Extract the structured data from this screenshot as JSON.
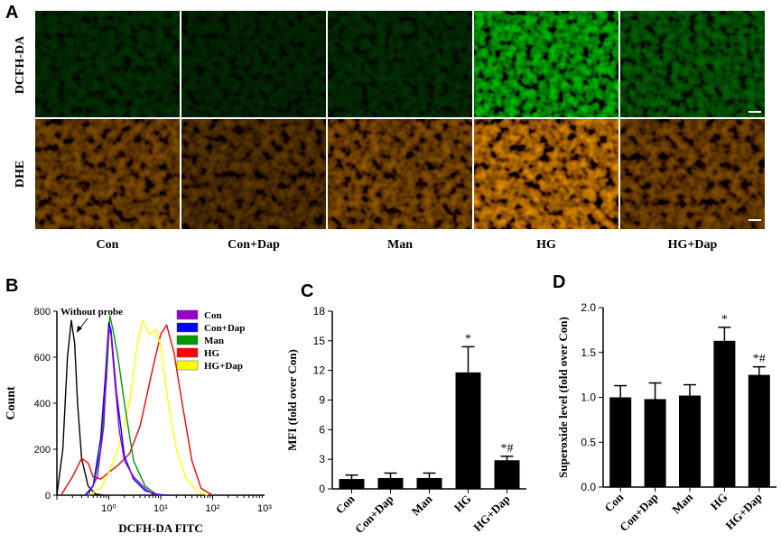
{
  "panel_A": {
    "label": "A",
    "row_labels": [
      "DCFH-DA",
      "DHE"
    ],
    "column_labels": [
      "Con",
      "Con+Dap",
      "Man",
      "HG",
      "HG+Dap"
    ]
  },
  "panel_B": {
    "label": "B"
  },
  "panel_C": {
    "label": "C"
  },
  "panel_D": {
    "label": "D"
  },
  "colors": {
    "Con": "#9900cc",
    "Con+Dap": "#0000ff",
    "Man": "#009900",
    "HG": "#ff0000",
    "HG+Dap": "#ffff00",
    "Without probe": "#000000"
  },
  "chart_data": [
    {
      "panel": "B",
      "type": "line",
      "xlabel": "DCFH-DA FITC",
      "ylabel": "Count",
      "xscale": "log",
      "xlim": [
        0.1,
        1000
      ],
      "ylim": [
        0,
        800
      ],
      "xticks": [
        "10⁰",
        "10¹",
        "10²",
        "10³"
      ],
      "yticks": [
        0,
        200,
        400,
        600,
        800
      ],
      "annotation": "Without probe",
      "legend_position": "top-right",
      "legend": [
        "Con",
        "Con+Dap",
        "Man",
        "HG",
        "HG+Dap"
      ],
      "series": [
        {
          "name": "Without probe",
          "x": [
            0.1,
            0.13,
            0.16,
            0.19,
            0.22,
            0.25,
            0.3,
            0.4,
            0.55,
            0.8
          ],
          "y": [
            0,
            200,
            600,
            760,
            660,
            400,
            160,
            40,
            5,
            0
          ]
        },
        {
          "name": "Con",
          "x": [
            0.4,
            0.6,
            0.8,
            0.9,
            1.0,
            1.1,
            1.3,
            1.6,
            2.0,
            3.0,
            5.0,
            7.0,
            10.0
          ],
          "y": [
            0,
            80,
            300,
            550,
            730,
            700,
            500,
            280,
            150,
            80,
            30,
            5,
            0
          ]
        },
        {
          "name": "Con+Dap",
          "x": [
            0.35,
            0.5,
            0.7,
            0.85,
            1.0,
            1.1,
            1.4,
            2.0,
            3.0,
            5.0,
            8.0,
            12.0
          ],
          "y": [
            0,
            40,
            250,
            500,
            750,
            720,
            450,
            170,
            70,
            20,
            5,
            0
          ]
        },
        {
          "name": "Man",
          "x": [
            0.35,
            0.5,
            0.7,
            0.9,
            1.05,
            1.2,
            1.5,
            2.0,
            3.0,
            5.0,
            8.0,
            12.0
          ],
          "y": [
            0,
            40,
            200,
            500,
            780,
            720,
            600,
            400,
            150,
            40,
            5,
            0
          ]
        },
        {
          "name": "HG",
          "x": [
            0.12,
            0.2,
            0.3,
            0.4,
            0.5,
            0.7,
            1.0,
            1.5,
            2.5,
            4.0,
            7.0,
            10.0,
            13.0,
            18.0,
            25.0,
            40.0,
            60.0,
            100.0
          ],
          "y": [
            0,
            80,
            160,
            140,
            80,
            70,
            100,
            130,
            180,
            300,
            550,
            700,
            740,
            620,
            420,
            150,
            30,
            0
          ]
        },
        {
          "name": "HG+Dap",
          "x": [
            0.4,
            0.7,
            1.0,
            1.5,
            2.5,
            3.5,
            4.5,
            6.0,
            8.0,
            10.0,
            14.0,
            20.0,
            30.0,
            50.0,
            80.0
          ],
          "y": [
            0,
            30,
            100,
            200,
            400,
            650,
            760,
            700,
            720,
            650,
            400,
            200,
            80,
            15,
            0
          ]
        }
      ]
    },
    {
      "panel": "C",
      "type": "bar",
      "categories": [
        "Con",
        "Con+Dap",
        "Man",
        "HG",
        "HG+Dap"
      ],
      "values": [
        1.0,
        1.1,
        1.1,
        11.8,
        2.9
      ],
      "errors": [
        0.4,
        0.5,
        0.5,
        2.6,
        0.4
      ],
      "annotations": [
        "",
        "",
        "",
        "*",
        "*#"
      ],
      "ylabel": "MFI (fold over Con)",
      "ylim": [
        0,
        18
      ],
      "yticks": [
        0,
        3,
        6,
        9,
        12,
        15,
        18
      ]
    },
    {
      "panel": "D",
      "type": "bar",
      "categories": [
        "Con",
        "Con+Dap",
        "Man",
        "HG",
        "HG+Dap"
      ],
      "values": [
        1.0,
        0.98,
        1.02,
        1.63,
        1.25
      ],
      "errors": [
        0.13,
        0.18,
        0.12,
        0.15,
        0.09
      ],
      "annotations": [
        "",
        "",
        "",
        "*",
        "*#"
      ],
      "ylabel": "Superoxide level (fold over Con)",
      "ylim": [
        0,
        2.0
      ],
      "yticks": [
        "0.0",
        "0.5",
        "1.0",
        "1.5",
        "2.0"
      ]
    }
  ]
}
